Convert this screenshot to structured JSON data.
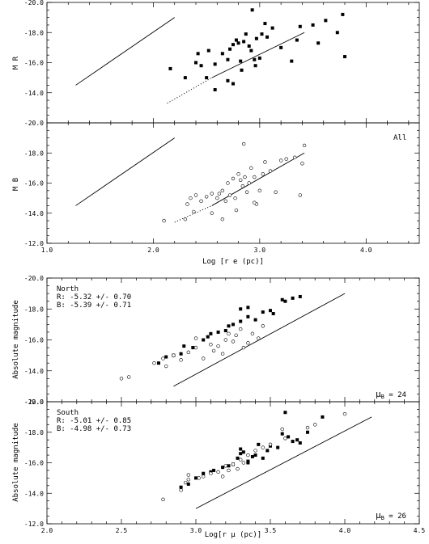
{
  "chart_data": [
    {
      "type": "scatter",
      "panel": "top-1",
      "ylabel": "M R",
      "xlabel": "",
      "xlim": [
        1.0,
        4.5
      ],
      "ylim": [
        -20.0,
        -12.0
      ],
      "y_inverted": true,
      "ytick_labels": [
        "-20.0",
        "-18.0",
        "-16.0",
        "-14.0"
      ],
      "xtick_labels": [],
      "annotations": [],
      "series": [
        {
          "marker": "filled-square",
          "points": [
            [
              2.16,
              -15.6
            ],
            [
              2.4,
              -16.0
            ],
            [
              2.42,
              -16.6
            ],
            [
              2.45,
              -15.8
            ],
            [
              2.52,
              -16.8
            ],
            [
              2.58,
              -15.9
            ],
            [
              2.65,
              -16.6
            ],
            [
              2.7,
              -16.2
            ],
            [
              2.72,
              -16.9
            ],
            [
              2.75,
              -17.2
            ],
            [
              2.78,
              -17.5
            ],
            [
              2.8,
              -17.3
            ],
            [
              2.82,
              -16.1
            ],
            [
              2.83,
              -15.5
            ],
            [
              2.85,
              -17.4
            ],
            [
              2.87,
              -17.9
            ],
            [
              2.9,
              -17.1
            ],
            [
              2.92,
              -16.8
            ],
            [
              2.95,
              -16.2
            ],
            [
              2.97,
              -17.6
            ],
            [
              3.0,
              -16.3
            ],
            [
              3.02,
              -17.9
            ],
            [
              3.05,
              -18.6
            ],
            [
              3.12,
              -18.3
            ],
            [
              3.3,
              -16.1
            ],
            [
              3.35,
              -17.5
            ],
            [
              3.38,
              -18.4
            ],
            [
              3.5,
              -18.5
            ],
            [
              3.55,
              -17.3
            ],
            [
              3.62,
              -18.8
            ],
            [
              3.73,
              -18.0
            ],
            [
              3.78,
              -19.2
            ],
            [
              3.8,
              -16.4
            ],
            [
              2.93,
              -19.5
            ],
            [
              3.07,
              -17.7
            ],
            [
              2.5,
              -15.0
            ],
            [
              2.58,
              -14.2
            ],
            [
              2.7,
              -14.8
            ],
            [
              2.75,
              -14.6
            ],
            [
              2.3,
              -15.0
            ],
            [
              2.96,
              -15.8
            ],
            [
              3.2,
              -17.0
            ]
          ]
        }
      ],
      "fit_lines": [
        {
          "style": "solid",
          "points": [
            [
              2.55,
              -15.0
            ],
            [
              3.42,
              -18.0
            ]
          ]
        },
        {
          "style": "dotted",
          "points": [
            [
              2.13,
              -13.3
            ],
            [
              2.55,
              -15.0
            ]
          ]
        }
      ],
      "reference_lines": [
        {
          "style": "solid",
          "points": [
            [
              1.27,
              -14.5
            ],
            [
              2.2,
              -19.0
            ]
          ]
        }
      ]
    },
    {
      "type": "scatter",
      "panel": "top-2",
      "ylabel": "M B",
      "xlabel": "Log [r e (pc)]",
      "xlim": [
        1.0,
        4.5
      ],
      "ylim": [
        -20.0,
        -12.0
      ],
      "y_inverted": true,
      "ytick_labels": [
        "-20.0",
        "-18.0",
        "-16.0",
        "-14.0",
        "-12.0"
      ],
      "xtick_labels": [
        "1.0",
        "2.0",
        "3.0",
        "4.0"
      ],
      "annotations": [
        "All"
      ],
      "series": [
        {
          "marker": "open-circle",
          "points": [
            [
              2.1,
              -13.5
            ],
            [
              2.3,
              -13.6
            ],
            [
              2.32,
              -14.6
            ],
            [
              2.35,
              -15.0
            ],
            [
              2.38,
              -14.1
            ],
            [
              2.4,
              -15.2
            ],
            [
              2.45,
              -14.8
            ],
            [
              2.5,
              -15.1
            ],
            [
              2.55,
              -14.0
            ],
            [
              2.6,
              -15.0
            ],
            [
              2.62,
              -15.3
            ],
            [
              2.65,
              -15.5
            ],
            [
              2.68,
              -14.8
            ],
            [
              2.7,
              -16.0
            ],
            [
              2.72,
              -15.2
            ],
            [
              2.75,
              -16.3
            ],
            [
              2.77,
              -15.0
            ],
            [
              2.8,
              -16.6
            ],
            [
              2.82,
              -16.2
            ],
            [
              2.84,
              -15.8
            ],
            [
              2.86,
              -16.4
            ],
            [
              2.88,
              -15.4
            ],
            [
              2.9,
              -16.0
            ],
            [
              2.92,
              -17.0
            ],
            [
              2.95,
              -16.4
            ],
            [
              2.97,
              -14.6
            ],
            [
              3.0,
              -15.5
            ],
            [
              3.03,
              -16.6
            ],
            [
              3.05,
              -17.4
            ],
            [
              3.1,
              -16.8
            ],
            [
              3.15,
              -15.4
            ],
            [
              3.2,
              -17.5
            ],
            [
              3.25,
              -17.6
            ],
            [
              3.33,
              -17.7
            ],
            [
              3.38,
              -15.2
            ],
            [
              3.4,
              -17.3
            ],
            [
              3.42,
              -18.5
            ],
            [
              2.85,
              -18.6
            ],
            [
              2.78,
              -14.2
            ],
            [
              2.95,
              -14.7
            ],
            [
              2.55,
              -15.3
            ],
            [
              2.65,
              -13.6
            ]
          ]
        }
      ],
      "fit_lines": [
        {
          "style": "solid",
          "points": [
            [
              2.55,
              -14.5
            ],
            [
              3.42,
              -18.0
            ]
          ]
        },
        {
          "style": "dotted",
          "points": [
            [
              2.2,
              -13.4
            ],
            [
              2.55,
              -14.5
            ]
          ]
        }
      ],
      "reference_lines": [
        {
          "style": "solid",
          "points": [
            [
              1.27,
              -14.5
            ],
            [
              2.2,
              -19.0
            ]
          ]
        }
      ]
    },
    {
      "type": "scatter",
      "panel": "bottom-1",
      "ylabel": "Absolute magnitude",
      "xlabel": "",
      "xlim": [
        2.0,
        4.5
      ],
      "ylim": [
        -20.0,
        -12.0
      ],
      "y_inverted": true,
      "ytick_labels": [
        "-20.0",
        "-18.0",
        "-16.0",
        "-14.0",
        "-12.0"
      ],
      "xtick_labels": [],
      "annotations": [
        "North",
        "R: -5.32 +/- 0.70",
        "B: -5.39 +/- 0.71"
      ],
      "mu_label": {
        "symbol": "μ",
        "sub": "B",
        "value": "= 24"
      },
      "series": [
        {
          "marker": "filled-square",
          "points": [
            [
              2.8,
              -14.9
            ],
            [
              2.85,
              -15.0
            ],
            [
              2.9,
              -15.1
            ],
            [
              2.92,
              -15.6
            ],
            [
              2.98,
              -15.5
            ],
            [
              3.05,
              -16.0
            ],
            [
              3.1,
              -16.4
            ],
            [
              3.15,
              -16.5
            ],
            [
              3.2,
              -16.6
            ],
            [
              3.25,
              -17.0
            ],
            [
              3.3,
              -17.2
            ],
            [
              3.35,
              -17.5
            ],
            [
              3.4,
              -17.3
            ],
            [
              3.45,
              -17.8
            ],
            [
              3.5,
              -17.9
            ],
            [
              3.58,
              -18.6
            ],
            [
              3.6,
              -18.5
            ],
            [
              3.65,
              -18.7
            ],
            [
              3.08,
              -16.2
            ],
            [
              3.22,
              -16.9
            ],
            [
              3.52,
              -17.7
            ],
            [
              3.7,
              -18.8
            ],
            [
              2.75,
              -14.5
            ],
            [
              3.3,
              -18.0
            ],
            [
              3.35,
              -18.1
            ]
          ]
        },
        {
          "marker": "open-circle",
          "points": [
            [
              2.5,
              -13.5
            ],
            [
              2.55,
              -13.6
            ],
            [
              2.72,
              -14.5
            ],
            [
              2.78,
              -14.8
            ],
            [
              2.8,
              -14.3
            ],
            [
              2.85,
              -15.0
            ],
            [
              2.95,
              -15.2
            ],
            [
              3.0,
              -15.5
            ],
            [
              3.05,
              -14.8
            ],
            [
              3.1,
              -15.7
            ],
            [
              3.12,
              -15.3
            ],
            [
              3.15,
              -15.6
            ],
            [
              3.2,
              -16.0
            ],
            [
              3.25,
              -15.9
            ],
            [
              3.27,
              -16.3
            ],
            [
              3.3,
              -16.7
            ],
            [
              3.35,
              -15.8
            ],
            [
              3.38,
              -16.4
            ],
            [
              3.42,
              -16.1
            ],
            [
              3.45,
              -16.9
            ],
            [
              2.9,
              -14.7
            ],
            [
              3.0,
              -16.1
            ],
            [
              3.18,
              -15.1
            ],
            [
              3.22,
              -16.4
            ],
            [
              3.32,
              -15.5
            ]
          ]
        }
      ],
      "fit_lines": [],
      "reference_lines": [
        {
          "style": "solid",
          "points": [
            [
              2.85,
              -13.0
            ],
            [
              4.0,
              -19.0
            ]
          ]
        }
      ]
    },
    {
      "type": "scatter",
      "panel": "bottom-2",
      "ylabel": "Absolute magnitude",
      "xlabel": "Log[r μ (pc)]",
      "xlim": [
        2.0,
        4.5
      ],
      "ylim": [
        -20.0,
        -12.0
      ],
      "y_inverted": true,
      "ytick_labels": [
        "-20.0",
        "-18.0",
        "-16.0",
        "-14.0",
        "-12.0"
      ],
      "xtick_labels": [
        "2.0",
        "2.5",
        "3.0",
        "3.5",
        "4.0",
        "4.5"
      ],
      "annotations": [
        "South",
        "R: -5.01 +/- 0.85",
        "B: -4.98 +/- 0.73"
      ],
      "mu_label": {
        "symbol": "μ",
        "sub": "B",
        "value": "= 26"
      },
      "series": [
        {
          "marker": "filled-square",
          "points": [
            [
              2.9,
              -14.4
            ],
            [
              2.95,
              -14.6
            ],
            [
              3.0,
              -15.0
            ],
            [
              3.05,
              -15.3
            ],
            [
              3.12,
              -15.5
            ],
            [
              3.18,
              -15.7
            ],
            [
              3.22,
              -15.8
            ],
            [
              3.28,
              -16.3
            ],
            [
              3.3,
              -16.6
            ],
            [
              3.32,
              -16.7
            ],
            [
              3.35,
              -16.1
            ],
            [
              3.38,
              -16.4
            ],
            [
              3.4,
              -16.5
            ],
            [
              3.45,
              -16.3
            ],
            [
              3.5,
              -17.1
            ],
            [
              3.55,
              -17.0
            ],
            [
              3.6,
              -19.3
            ],
            [
              3.62,
              -17.7
            ],
            [
              3.65,
              -17.4
            ],
            [
              3.7,
              -17.3
            ],
            [
              3.75,
              -18.0
            ],
            [
              3.85,
              -19.0
            ],
            [
              3.3,
              -16.9
            ],
            [
              3.42,
              -17.2
            ],
            [
              3.58,
              -17.9
            ],
            [
              3.68,
              -17.5
            ],
            [
              3.35,
              -16.0
            ],
            [
              3.25,
              -15.9
            ],
            [
              3.1,
              -15.4
            ],
            [
              3.48,
              -16.8
            ]
          ]
        },
        {
          "marker": "open-circle",
          "points": [
            [
              2.78,
              -13.6
            ],
            [
              2.9,
              -14.2
            ],
            [
              2.93,
              -14.7
            ],
            [
              2.95,
              -15.2
            ],
            [
              3.02,
              -15.0
            ],
            [
              3.05,
              -15.1
            ],
            [
              3.1,
              -15.3
            ],
            [
              3.15,
              -15.4
            ],
            [
              3.2,
              -15.8
            ],
            [
              3.22,
              -15.5
            ],
            [
              3.25,
              -15.9
            ],
            [
              3.3,
              -16.2
            ],
            [
              3.32,
              -16.0
            ],
            [
              3.35,
              -16.5
            ],
            [
              3.4,
              -16.8
            ],
            [
              3.45,
              -17.0
            ],
            [
              3.5,
              -17.2
            ],
            [
              3.58,
              -18.2
            ],
            [
              3.6,
              -17.6
            ],
            [
              3.75,
              -18.3
            ],
            [
              3.8,
              -18.5
            ],
            [
              4.0,
              -19.2
            ],
            [
              2.95,
              -14.9
            ],
            [
              3.18,
              -15.1
            ],
            [
              3.28,
              -15.6
            ]
          ]
        }
      ],
      "fit_lines": [],
      "reference_lines": [
        {
          "style": "solid",
          "points": [
            [
              3.0,
              -13.0
            ],
            [
              4.18,
              -19.0
            ]
          ]
        }
      ]
    }
  ]
}
